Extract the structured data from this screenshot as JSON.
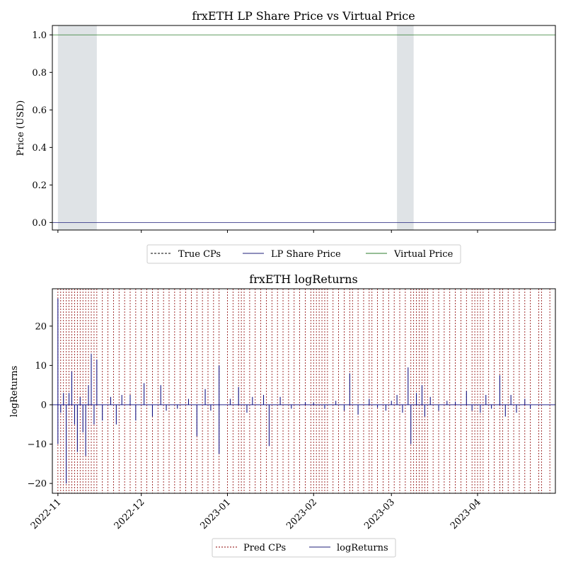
{
  "chart_data": [
    {
      "type": "line",
      "title": "frxETH LP Share Price vs Virtual Price",
      "xlabel": "",
      "ylabel": "Price (USD)",
      "ylim": [
        -0.04,
        1.05
      ],
      "yticks": [
        "0.0",
        "0.2",
        "0.4",
        "0.6",
        "0.8",
        "1.0"
      ],
      "xticks": [
        "2022-11",
        "2022-12",
        "2023-01",
        "2023-02",
        "2023-03",
        "2023-04"
      ],
      "xlim": [
        "2022-10-30",
        "2023-04-29"
      ],
      "grid": false,
      "legend_position": "bottom-center",
      "legend": [
        {
          "label": "True CPs",
          "style": "dashed",
          "color": "#000000"
        },
        {
          "label": "LP Share Price",
          "style": "solid",
          "color": "#1f1f7a"
        },
        {
          "label": "Virtual Price",
          "style": "solid",
          "color": "#2e7d2e"
        }
      ],
      "series": [
        {
          "name": "LP Share Price",
          "color": "#1f1f7a",
          "x": [
            "2022-10-30",
            "2023-04-29"
          ],
          "values": [
            0.0,
            0.0
          ]
        },
        {
          "name": "Virtual Price",
          "color": "#2e7d2e",
          "x": [
            "2022-10-30",
            "2023-04-29"
          ],
          "values": [
            1.0,
            1.0
          ]
        }
      ],
      "shaded_regions": [
        {
          "start": "2022-11-01",
          "end": "2022-11-15",
          "color": "#dfe3e6"
        },
        {
          "start": "2023-03-03",
          "end": "2023-03-09",
          "color": "#dfe3e6"
        }
      ]
    },
    {
      "type": "line",
      "title": "frxETH logReturns",
      "xlabel": "",
      "ylabel": "logReturns",
      "ylim": [
        -22.5,
        29.5
      ],
      "yticks": [
        "−20",
        "−10",
        "0",
        "10",
        "20"
      ],
      "xticks": [
        "2022-11",
        "2022-12",
        "2023-01",
        "2023-02",
        "2023-03",
        "2023-04"
      ],
      "xlim": [
        "2022-10-30",
        "2023-04-29"
      ],
      "grid": false,
      "legend_position": "bottom-center",
      "legend": [
        {
          "label": "Pred CPs",
          "style": "dashed",
          "color": "#8b0000"
        },
        {
          "label": "logReturns",
          "style": "solid",
          "color": "#1f1f7a"
        }
      ],
      "series": [
        {
          "name": "logReturns",
          "color": "#00007a"
        }
      ],
      "spikes": [
        {
          "x": "2022-11-01",
          "y": 27
        },
        {
          "x": "2022-11-01",
          "y": -10
        },
        {
          "x": "2022-11-02",
          "y": -2
        },
        {
          "x": "2022-11-03",
          "y": 3
        },
        {
          "x": "2022-11-04",
          "y": -20
        },
        {
          "x": "2022-11-05",
          "y": 3
        },
        {
          "x": "2022-11-06",
          "y": 8.5
        },
        {
          "x": "2022-11-07",
          "y": -5
        },
        {
          "x": "2022-11-08",
          "y": -12
        },
        {
          "x": "2022-11-09",
          "y": 2
        },
        {
          "x": "2022-11-10",
          "y": -7
        },
        {
          "x": "2022-11-11",
          "y": -13
        },
        {
          "x": "2022-11-12",
          "y": 5
        },
        {
          "x": "2022-11-13",
          "y": 13
        },
        {
          "x": "2022-11-14",
          "y": -5
        },
        {
          "x": "2022-11-15",
          "y": 11.5
        },
        {
          "x": "2022-11-17",
          "y": -4
        },
        {
          "x": "2022-11-20",
          "y": 2
        },
        {
          "x": "2022-11-22",
          "y": -5
        },
        {
          "x": "2022-11-24",
          "y": 2.5
        },
        {
          "x": "2022-11-27",
          "y": 2.5
        },
        {
          "x": "2022-11-29",
          "y": -4
        },
        {
          "x": "2022-12-02",
          "y": 5.5
        },
        {
          "x": "2022-12-05",
          "y": -3
        },
        {
          "x": "2022-12-08",
          "y": 5
        },
        {
          "x": "2022-12-10",
          "y": -1.5
        },
        {
          "x": "2022-12-14",
          "y": -1
        },
        {
          "x": "2022-12-18",
          "y": 1.5
        },
        {
          "x": "2022-12-21",
          "y": -8
        },
        {
          "x": "2022-12-24",
          "y": 4
        },
        {
          "x": "2022-12-26",
          "y": -1.5
        },
        {
          "x": "2022-12-29",
          "y": 10
        },
        {
          "x": "2022-12-29",
          "y": -12.5
        },
        {
          "x": "2023-01-02",
          "y": 1.5
        },
        {
          "x": "2023-01-05",
          "y": 4.5
        },
        {
          "x": "2023-01-08",
          "y": -2
        },
        {
          "x": "2023-01-10",
          "y": 2
        },
        {
          "x": "2023-01-14",
          "y": 2.5
        },
        {
          "x": "2023-01-16",
          "y": -10.5
        },
        {
          "x": "2023-01-20",
          "y": 2
        },
        {
          "x": "2023-01-24",
          "y": -1
        },
        {
          "x": "2023-01-29",
          "y": 0.7
        },
        {
          "x": "2023-02-01",
          "y": 0.6
        },
        {
          "x": "2023-02-05",
          "y": -1
        },
        {
          "x": "2023-02-09",
          "y": 1
        },
        {
          "x": "2023-02-12",
          "y": -1.5
        },
        {
          "x": "2023-02-14",
          "y": 8
        },
        {
          "x": "2023-02-17",
          "y": -2.5
        },
        {
          "x": "2023-02-21",
          "y": 1.5
        },
        {
          "x": "2023-02-24",
          "y": -0.7
        },
        {
          "x": "2023-02-27",
          "y": -1.5
        },
        {
          "x": "2023-03-01",
          "y": 1
        },
        {
          "x": "2023-03-03",
          "y": 2.5
        },
        {
          "x": "2023-03-05",
          "y": -2
        },
        {
          "x": "2023-03-07",
          "y": 9.5
        },
        {
          "x": "2023-03-08",
          "y": -10
        },
        {
          "x": "2023-03-10",
          "y": 3
        },
        {
          "x": "2023-03-12",
          "y": 5
        },
        {
          "x": "2023-03-13",
          "y": -3
        },
        {
          "x": "2023-03-15",
          "y": 2
        },
        {
          "x": "2023-03-18",
          "y": -1.5
        },
        {
          "x": "2023-03-21",
          "y": 1
        },
        {
          "x": "2023-03-24",
          "y": 0.8
        },
        {
          "x": "2023-03-28",
          "y": 3.5
        },
        {
          "x": "2023-03-30",
          "y": -1.5
        },
        {
          "x": "2023-04-02",
          "y": -2
        },
        {
          "x": "2023-04-04",
          "y": 2.5
        },
        {
          "x": "2023-04-06",
          "y": -1
        },
        {
          "x": "2023-04-09",
          "y": 7.5
        },
        {
          "x": "2023-04-11",
          "y": -3
        },
        {
          "x": "2023-04-13",
          "y": 2.5
        },
        {
          "x": "2023-04-15",
          "y": -2
        },
        {
          "x": "2023-04-18",
          "y": 1.5
        },
        {
          "x": "2023-04-20",
          "y": -1
        }
      ],
      "pred_cps": [
        "2022-11-01",
        "2022-11-02",
        "2022-11-03",
        "2022-11-04",
        "2022-11-05",
        "2022-11-06",
        "2022-11-07",
        "2022-11-08",
        "2022-11-09",
        "2022-11-10",
        "2022-11-11",
        "2022-11-12",
        "2022-11-13",
        "2022-11-14",
        "2022-11-15",
        "2022-11-17",
        "2022-11-19",
        "2022-11-21",
        "2022-11-23",
        "2022-11-25",
        "2022-11-27",
        "2022-11-29",
        "2022-12-01",
        "2022-12-03",
        "2022-12-05",
        "2022-12-07",
        "2022-12-09",
        "2022-12-11",
        "2022-12-13",
        "2022-12-15",
        "2022-12-17",
        "2022-12-19",
        "2022-12-21",
        "2022-12-23",
        "2022-12-25",
        "2022-12-27",
        "2022-12-29",
        "2023-01-01",
        "2023-01-03",
        "2023-01-05",
        "2023-01-06",
        "2023-01-07",
        "2023-01-09",
        "2023-01-11",
        "2023-01-13",
        "2023-01-15",
        "2023-01-17",
        "2023-01-19",
        "2023-01-21",
        "2023-01-23",
        "2023-01-25",
        "2023-01-27",
        "2023-01-29",
        "2023-01-31",
        "2023-02-01",
        "2023-02-02",
        "2023-02-03",
        "2023-02-04",
        "2023-02-05",
        "2023-02-06",
        "2023-02-08",
        "2023-02-10",
        "2023-02-12",
        "2023-02-14",
        "2023-02-15",
        "2023-02-17",
        "2023-02-19",
        "2023-02-21",
        "2023-02-22",
        "2023-02-24",
        "2023-02-26",
        "2023-02-28",
        "2023-03-02",
        "2023-03-04",
        "2023-03-06",
        "2023-03-08",
        "2023-03-09",
        "2023-03-10",
        "2023-03-11",
        "2023-03-12",
        "2023-03-13",
        "2023-03-14",
        "2023-03-16",
        "2023-03-18",
        "2023-03-20",
        "2023-03-22",
        "2023-03-24",
        "2023-03-26",
        "2023-03-28",
        "2023-03-30",
        "2023-03-31",
        "2023-04-01",
        "2023-04-02",
        "2023-04-03",
        "2023-04-05",
        "2023-04-07",
        "2023-04-09",
        "2023-04-10",
        "2023-04-12",
        "2023-04-14",
        "2023-04-16",
        "2023-04-18",
        "2023-04-20",
        "2023-04-23",
        "2023-04-24",
        "2023-04-27"
      ]
    }
  ]
}
